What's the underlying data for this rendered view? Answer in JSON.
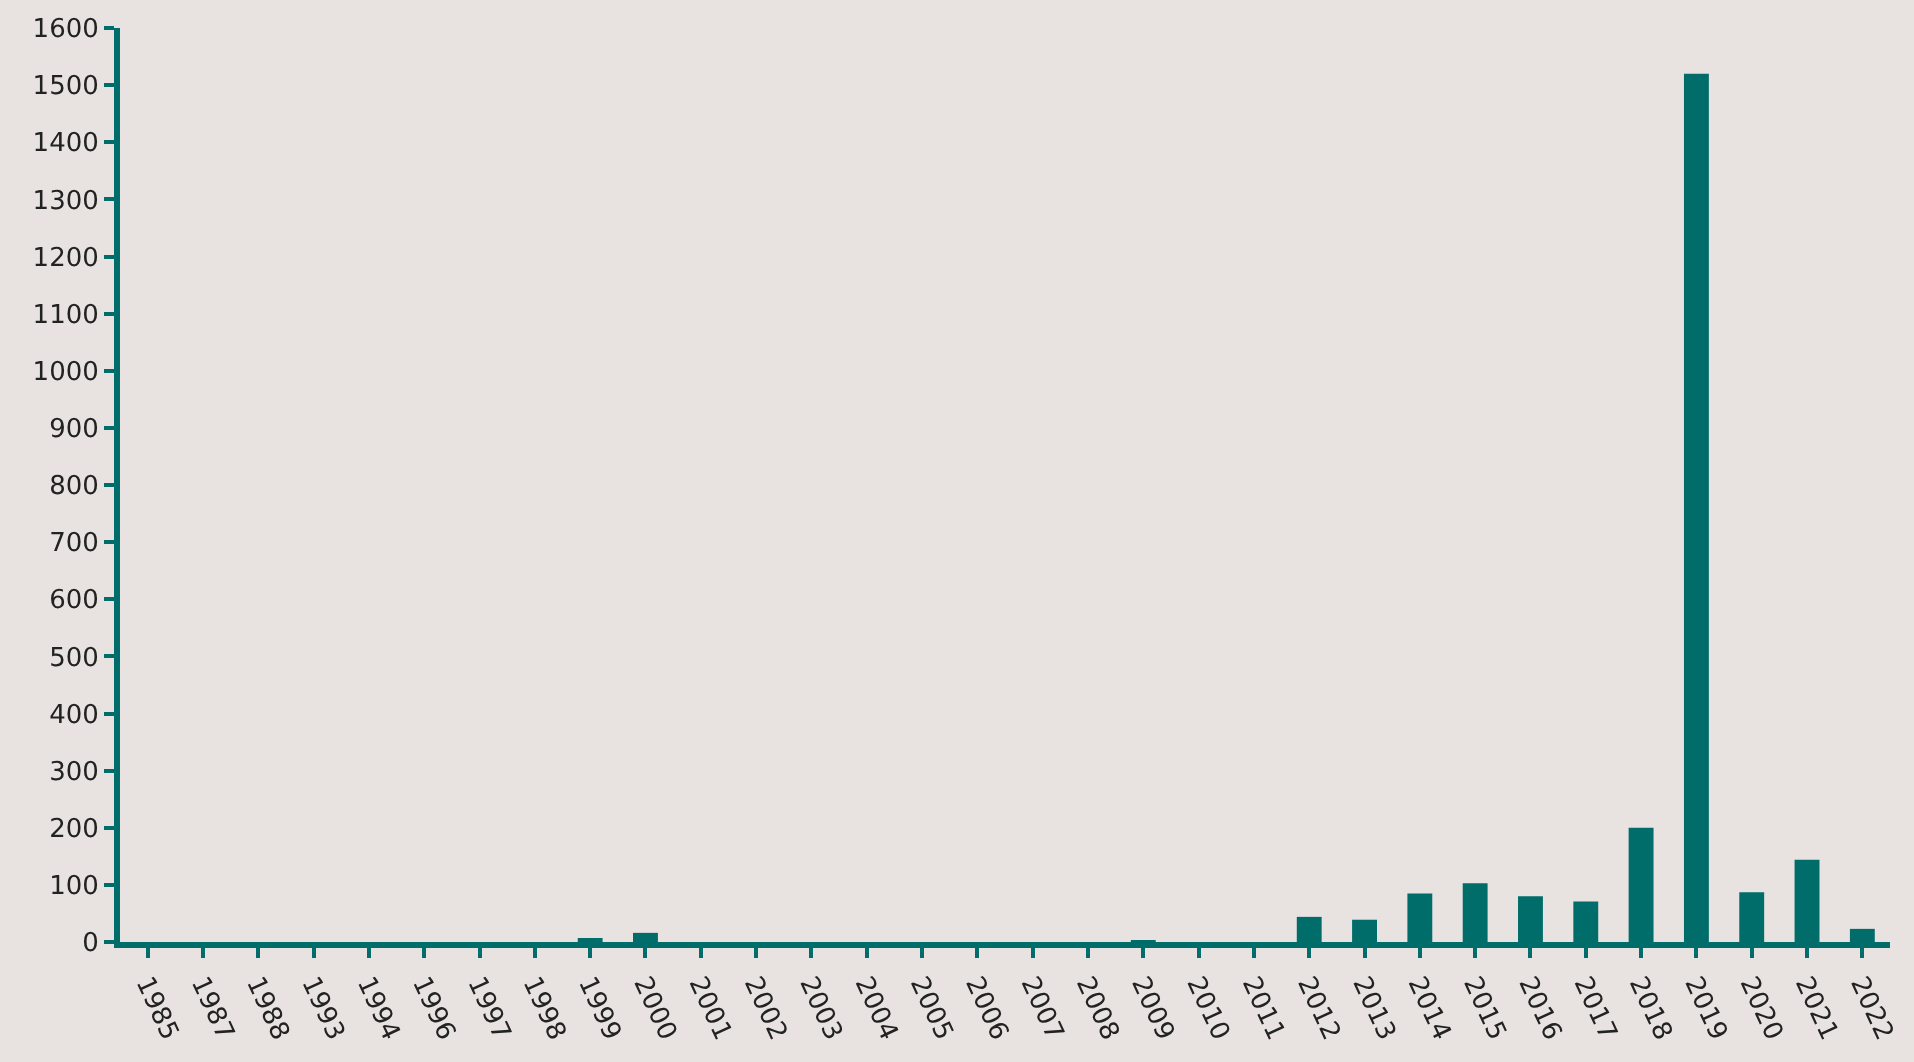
{
  "chart_data": {
    "type": "bar",
    "categories": [
      "1985",
      "1987",
      "1988",
      "1993",
      "1994",
      "1996",
      "1997",
      "1998",
      "1999",
      "2000",
      "2001",
      "2002",
      "2003",
      "2004",
      "2005",
      "2006",
      "2007",
      "2008",
      "2009",
      "2010",
      "2011",
      "2012",
      "2013",
      "2014",
      "2015",
      "2016",
      "2017",
      "2018",
      "2019",
      "2020",
      "2021",
      "2022"
    ],
    "values": [
      0,
      0,
      0,
      0,
      0,
      0,
      0,
      0,
      5,
      16,
      0,
      0,
      0,
      0,
      0,
      0,
      0,
      0,
      2,
      0,
      0,
      44,
      39,
      85,
      103,
      80,
      71,
      200,
      1520,
      87,
      144,
      23
    ],
    "color": "#006d6b",
    "ylim": [
      0,
      1600
    ],
    "yticks": [
      0,
      100,
      200,
      300,
      400,
      500,
      600,
      700,
      800,
      900,
      1000,
      1100,
      1200,
      1300,
      1400,
      1500,
      1600
    ],
    "grid": false,
    "legend": false
  }
}
